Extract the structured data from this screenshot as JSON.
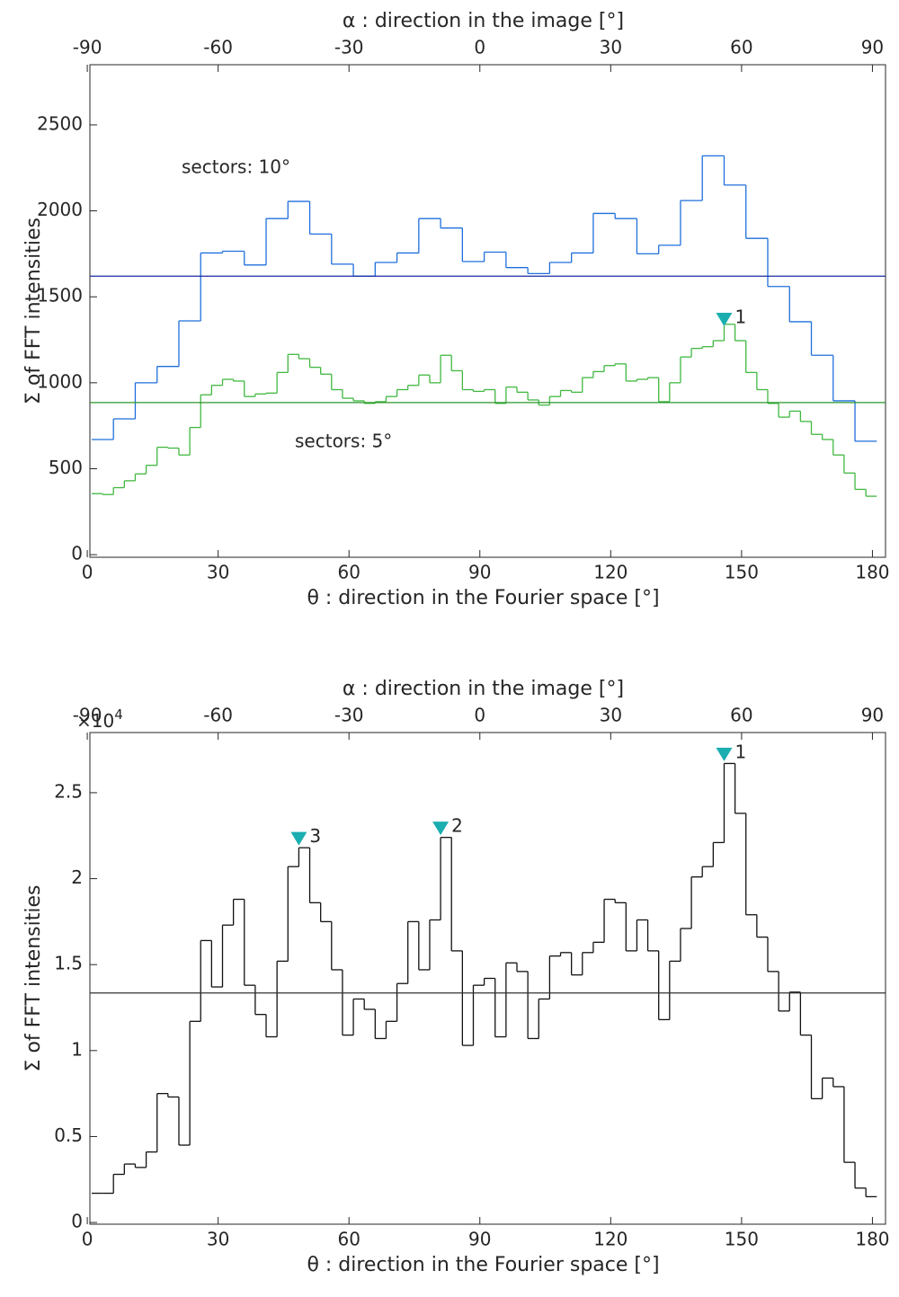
{
  "chart_data": [
    {
      "type": "step",
      "x2label": "α : direction in the image [°]",
      "xlabel": "θ : direction in the Fourier space [°]",
      "ylabel": "Σ of FFT intensities",
      "xlim": [
        0.6,
        183
      ],
      "xticks": [
        0,
        30,
        60,
        90,
        120,
        150,
        180
      ],
      "x2lim": [
        -89.4,
        93
      ],
      "x2ticks": [
        -90,
        -60,
        -30,
        0,
        30,
        60,
        90
      ],
      "ylim": [
        -15,
        2850
      ],
      "yticks": [
        0,
        500,
        1000,
        1500,
        2000,
        2500
      ],
      "series": [
        {
          "label": "sectors: 10°",
          "color": "#1f6fdc",
          "mean": 1620,
          "mean_color": "#1a2aa0",
          "bins": [
            1,
            6,
            11,
            16,
            21,
            26,
            31,
            36,
            41,
            46,
            51,
            56,
            61,
            66,
            71,
            76,
            81,
            86,
            91,
            96,
            101,
            106,
            111,
            116,
            121,
            126,
            131,
            136,
            141,
            146,
            151,
            156,
            161,
            166,
            171,
            176,
            181
          ],
          "values": [
            670,
            790,
            1000,
            1095,
            1360,
            1755,
            1765,
            1685,
            1955,
            2055,
            1865,
            1690,
            1620,
            1700,
            1755,
            1955,
            1900,
            1705,
            1760,
            1670,
            1635,
            1700,
            1755,
            1985,
            1955,
            1750,
            1800,
            2060,
            2320,
            2150,
            1840,
            1560,
            1355,
            1160,
            895,
            660
          ]
        },
        {
          "label": "sectors: 5°",
          "color": "#40b840",
          "mean": 885,
          "mean_color": "#2a962a",
          "bins": [
            1,
            3.5,
            6,
            8.5,
            11,
            13.5,
            16,
            18.5,
            21,
            23.5,
            26,
            28.5,
            31,
            33.5,
            36,
            38.5,
            41,
            43.5,
            46,
            48.5,
            51,
            53.5,
            56,
            58.5,
            61,
            63.5,
            66,
            68.5,
            71,
            73.5,
            76,
            78.5,
            81,
            83.5,
            86,
            88.5,
            91,
            93.5,
            96,
            98.5,
            101,
            103.5,
            106,
            108.5,
            111,
            113.5,
            116,
            118.5,
            121,
            123.5,
            126,
            128.5,
            131,
            133.5,
            136,
            138.5,
            141,
            143.5,
            146,
            148.5,
            151,
            153.5,
            156,
            158.5,
            161,
            163.5,
            166,
            168.5,
            171,
            173.5,
            176,
            178.5,
            181
          ],
          "values": [
            355,
            350,
            390,
            430,
            470,
            520,
            625,
            620,
            580,
            740,
            930,
            985,
            1020,
            1010,
            920,
            935,
            940,
            1060,
            1165,
            1140,
            1090,
            1050,
            960,
            910,
            895,
            880,
            890,
            920,
            960,
            985,
            1045,
            1000,
            1160,
            1070,
            960,
            950,
            960,
            880,
            975,
            945,
            900,
            870,
            920,
            955,
            945,
            1030,
            1065,
            1100,
            1110,
            1010,
            1020,
            1030,
            890,
            1000,
            1150,
            1200,
            1210,
            1245,
            1340,
            1245,
            1060,
            960,
            880,
            800,
            835,
            775,
            700,
            670,
            580,
            475,
            380,
            340
          ]
        }
      ],
      "marker_color": "#1aaeb0",
      "markers": [
        {
          "x": 146,
          "y": 1365,
          "label": "1"
        }
      ]
    },
    {
      "type": "step",
      "x2label": "α : direction in the image [°]",
      "xlabel": "θ : direction in the Fourier space [°]",
      "ylabel": "Σ of FFT intensities",
      "xlim": [
        0.6,
        183
      ],
      "xticks": [
        0,
        30,
        60,
        90,
        120,
        150,
        180
      ],
      "x2lim": [
        -89.4,
        93
      ],
      "x2ticks": [
        -90,
        -60,
        -30,
        0,
        30,
        60,
        90
      ],
      "ylim": [
        -0.01,
        2.85
      ],
      "yticks": [
        0,
        0.5,
        1,
        1.5,
        2,
        2.5
      ],
      "y_multiplier": "×10",
      "y_multiplier_exp": "4",
      "series": [
        {
          "color": "#111111",
          "mean": 1.335,
          "mean_color": "#333333",
          "bins": [
            1,
            3.5,
            6,
            8.5,
            11,
            13.5,
            16,
            18.5,
            21,
            23.5,
            26,
            28.5,
            31,
            33.5,
            36,
            38.5,
            41,
            43.5,
            46,
            48.5,
            51,
            53.5,
            56,
            58.5,
            61,
            63.5,
            66,
            68.5,
            71,
            73.5,
            76,
            78.5,
            81,
            83.5,
            86,
            88.5,
            91,
            93.5,
            96,
            98.5,
            101,
            103.5,
            106,
            108.5,
            111,
            113.5,
            116,
            118.5,
            121,
            123.5,
            126,
            128.5,
            131,
            133.5,
            136,
            138.5,
            141,
            143.5,
            146,
            148.5,
            151,
            153.5,
            156,
            158.5,
            161,
            163.5,
            166,
            168.5,
            171,
            173.5,
            176,
            178.5,
            181
          ],
          "values": [
            0.17,
            0.17,
            0.28,
            0.34,
            0.32,
            0.41,
            0.75,
            0.73,
            0.45,
            1.17,
            1.64,
            1.37,
            1.73,
            1.88,
            1.38,
            1.21,
            1.08,
            1.52,
            2.07,
            2.18,
            1.86,
            1.75,
            1.47,
            1.09,
            1.3,
            1.24,
            1.07,
            1.17,
            1.39,
            1.75,
            1.47,
            1.76,
            2.24,
            1.58,
            1.03,
            1.38,
            1.42,
            1.08,
            1.51,
            1.46,
            1.07,
            1.3,
            1.55,
            1.57,
            1.44,
            1.57,
            1.63,
            1.88,
            1.86,
            1.58,
            1.76,
            1.58,
            1.18,
            1.52,
            1.71,
            2.01,
            2.07,
            2.21,
            2.67,
            2.38,
            1.79,
            1.66,
            1.46,
            1.23,
            1.34,
            1.09,
            0.72,
            0.84,
            0.79,
            0.35,
            0.2,
            0.15
          ]
        }
      ],
      "marker_color": "#1aaeb0",
      "markers": [
        {
          "x": 146,
          "y": 2.72,
          "label": "1"
        },
        {
          "x": 81,
          "y": 2.29,
          "label": "2"
        },
        {
          "x": 48.5,
          "y": 2.23,
          "label": "3"
        }
      ]
    }
  ]
}
